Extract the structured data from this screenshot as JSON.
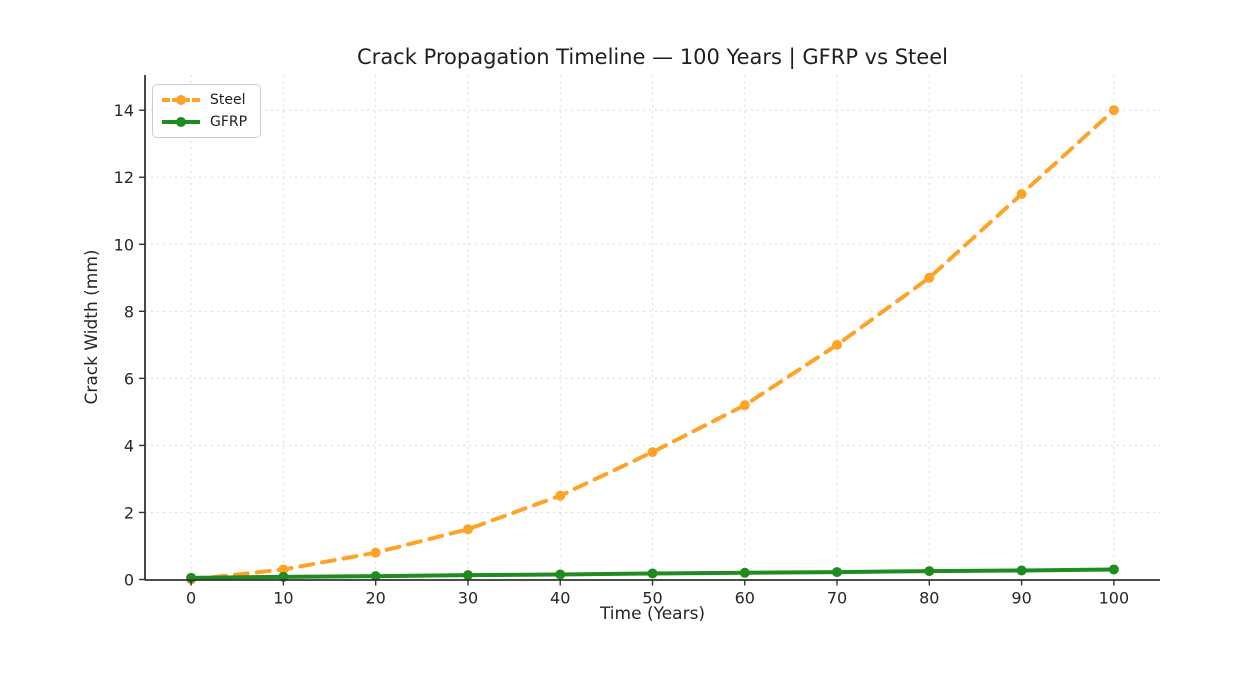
{
  "chart_data": {
    "type": "line",
    "title": "Crack Propagation Timeline — 100 Years | GFRP vs Steel",
    "xlabel": "Time (Years)",
    "ylabel": "Crack Width (mm)",
    "x": [
      0,
      10,
      20,
      30,
      40,
      50,
      60,
      70,
      80,
      90,
      100
    ],
    "series": [
      {
        "name": "Steel",
        "color": "#FDA428",
        "line_style": "dashed",
        "marker": "circle",
        "values": [
          0,
          0.3,
          0.8,
          1.5,
          2.5,
          3.8,
          5.2,
          7.0,
          9.0,
          11.5,
          14.0
        ]
      },
      {
        "name": "GFRP",
        "color": "#1E8C1E",
        "line_style": "solid",
        "marker": "circle",
        "values": [
          0.05,
          0.08,
          0.1,
          0.13,
          0.15,
          0.18,
          0.2,
          0.22,
          0.25,
          0.27,
          0.3
        ]
      }
    ],
    "xticks": [
      0,
      10,
      20,
      30,
      40,
      50,
      60,
      70,
      80,
      90,
      100
    ],
    "yticks": [
      0,
      2,
      4,
      6,
      8,
      10,
      12,
      14
    ],
    "xlim": [
      -5,
      105
    ],
    "ylim": [
      0,
      15.05
    ],
    "grid": true,
    "legend_position": "upper-left"
  }
}
